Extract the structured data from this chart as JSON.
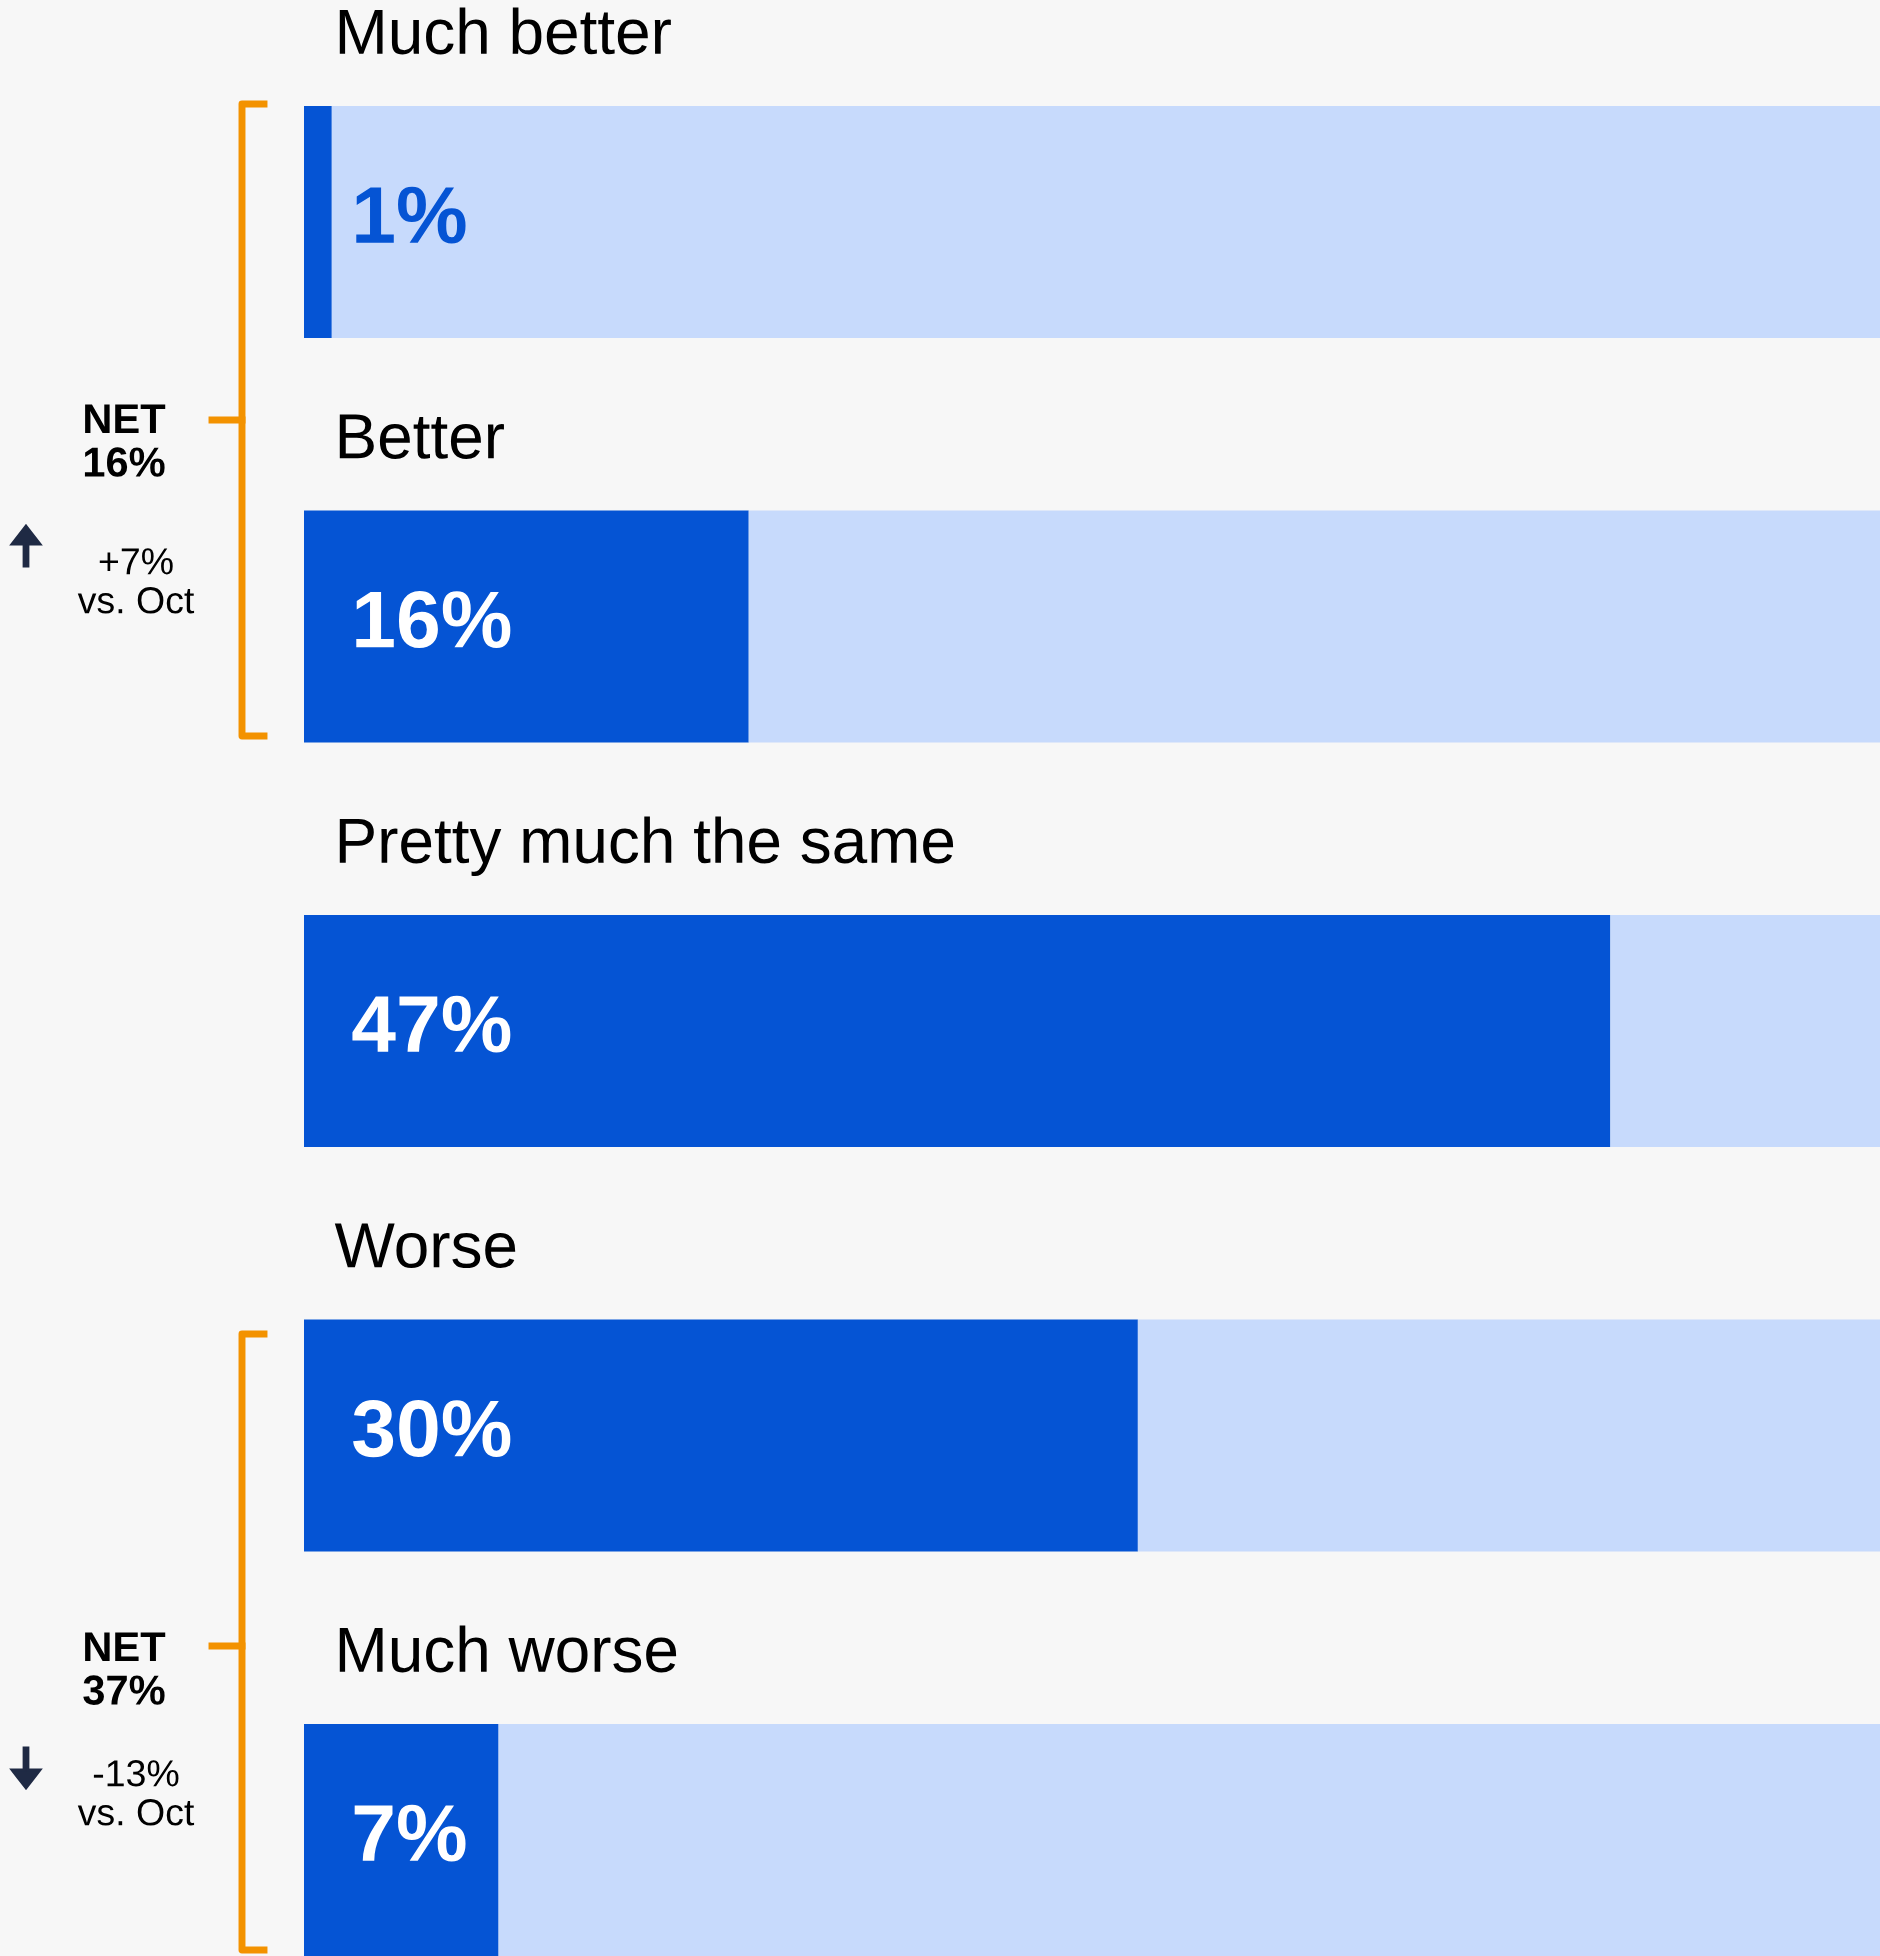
{
  "chart_data": {
    "type": "bar",
    "orientation": "horizontal",
    "stacked": true,
    "categories": [
      "Much better",
      "Better",
      "Pretty much the same",
      "Worse",
      "Much worse"
    ],
    "series": [
      {
        "color": "#0554d4",
        "values": [
          1,
          16,
          47,
          30,
          7
        ],
        "value_labels": [
          "1%",
          "16%",
          "47%",
          "30%",
          "7%"
        ]
      },
      {
        "color": "#c7dafc",
        "values": [
          55.7,
          40.7,
          9.7,
          26.7,
          49.7
        ]
      }
    ],
    "xlim": [
      0,
      56.7
    ],
    "annotations": [
      "NET\n16%",
      "+7%\nvs. Oct",
      "NET\n37%",
      "-13%\nvs. Oct"
    ]
  }
}
